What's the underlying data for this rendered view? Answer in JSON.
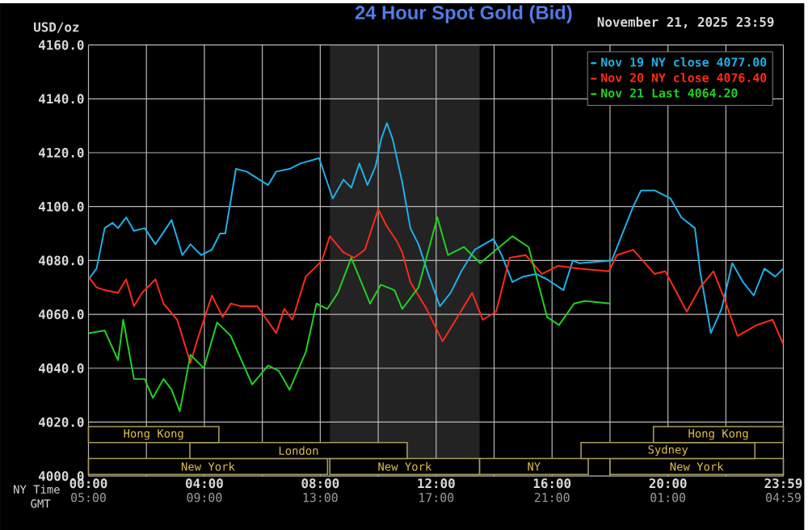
{
  "chart_data": [
    {
      "type": "line",
      "title": "24 Hour Spot Gold (Bid)",
      "subtitle": "November 21, 2025 23:59",
      "ylabel": "USD/oz",
      "xlabel": "NY Time",
      "x2label": "GMT",
      "xlim": [
        0,
        23.983
      ],
      "ylim": [
        4000,
        4160
      ],
      "xticks": [
        {
          "value": 0,
          "label": "00:00"
        },
        {
          "value": 2,
          "label": null
        },
        {
          "value": 4,
          "label": "04:00"
        },
        {
          "value": 6,
          "label": null
        },
        {
          "value": 8,
          "label": "08:00"
        },
        {
          "value": 10,
          "label": null
        },
        {
          "value": 12,
          "label": "12:00"
        },
        {
          "value": 14,
          "label": null
        },
        {
          "value": 16,
          "label": "16:00"
        },
        {
          "value": 18,
          "label": null
        },
        {
          "value": 20,
          "label": "20:00"
        },
        {
          "value": 22,
          "label": null
        },
        {
          "value": 23.983,
          "label": "23:59"
        }
      ],
      "x2lim": [
        "2025-11-21T05:00",
        "2025-11-22T04:59"
      ],
      "x2ticks": [
        {
          "value": "2025-11-21T05:00",
          "label": "05:00"
        },
        {
          "value": "2025-11-21T09:00",
          "label": "09:00"
        },
        {
          "value": "2025-11-21T13:00",
          "label": "13:00"
        },
        {
          "value": "2025-11-21T17:00",
          "label": "17:00"
        },
        {
          "value": "2025-11-21T21:00",
          "label": "21:00"
        },
        {
          "value": "2025-11-22T01:00",
          "label": "01:00"
        },
        {
          "value": "2025-11-22T04:59",
          "label": "04:59"
        }
      ],
      "yticks": [
        {
          "value": 4000,
          "label": "4000.0"
        },
        {
          "value": 4020,
          "label": "4020.0"
        },
        {
          "value": 4040,
          "label": "4040.0"
        },
        {
          "value": 4060,
          "label": "4060.0"
        },
        {
          "value": 4080,
          "label": "4080.0"
        },
        {
          "value": 4100,
          "label": "4100.0"
        },
        {
          "value": 4120,
          "label": "4120.0"
        },
        {
          "value": 4140,
          "label": "4140.0"
        },
        {
          "value": 4160,
          "label": "4160.0"
        }
      ],
      "grid": true,
      "legend": "top right",
      "line_style": "solid",
      "bands": [
        {
          "axis": "x",
          "from": 8.33,
          "to": 13.5,
          "color": "#232323"
        }
      ],
      "series": [
        {
          "name": "Nov 19 NY close 4077.00",
          "color": "#1fb0e8",
          "x": [
            0,
            0.28,
            0.56,
            0.83,
            1.02,
            1.3,
            1.57,
            1.94,
            2.31,
            2.87,
            3.24,
            3.52,
            3.89,
            4.26,
            4.54,
            4.72,
            5.09,
            5.46,
            6.2,
            6.48,
            6.94,
            7.31,
            7.96,
            8.43,
            8.8,
            9.07,
            9.35,
            9.63,
            9.91,
            10.1,
            10.3,
            10.5,
            10.83,
            11.11,
            11.39,
            11.76,
            12.13,
            12.5,
            12.87,
            13.33,
            13.98,
            14.26,
            14.63,
            15.0,
            15.46,
            15.83,
            16.39,
            16.72,
            16.94,
            null,
            18.06,
            18.43,
            18.8,
            19.07,
            19.54,
            20.09,
            20.46,
            20.93,
            21.11,
            21.48,
            21.85,
            22.22,
            22.59,
            22.96,
            23.33,
            23.7,
            23.98
          ],
          "values": [
            4073,
            4077,
            4092,
            4094,
            4092,
            4096,
            4091,
            4092,
            4086,
            4095,
            4082,
            4086,
            4082,
            4084,
            4090,
            4090,
            4114,
            4113,
            4108,
            4113,
            4114,
            4116,
            4118,
            4103,
            4110,
            4107,
            4116,
            4108,
            4115,
            4125,
            4131,
            4125,
            4109,
            4092,
            4086,
            4074,
            4063,
            4068,
            4076,
            4084,
            4088,
            4082,
            4072,
            4074,
            4075,
            4073,
            4069,
            4080,
            4079,
            null,
            4080,
            4090,
            4100,
            4106,
            4106,
            4103,
            4096,
            4092,
            4076,
            4053,
            4062,
            4079,
            4072,
            4067,
            4077,
            4074,
            4077
          ]
        },
        {
          "name": "Nov 20 NY close 4076.40",
          "color": "#ff2a1a",
          "x": [
            0,
            0.28,
            0.56,
            1.02,
            1.3,
            1.57,
            1.85,
            2.31,
            2.59,
            3.06,
            3.52,
            3.8,
            4.26,
            4.63,
            4.91,
            5.28,
            5.83,
            6.48,
            6.76,
            7.04,
            7.5,
            8.06,
            8.33,
            8.8,
            9.17,
            9.54,
            10.0,
            10.28,
            10.65,
            10.83,
            11.11,
            11.67,
            12.22,
            12.68,
            13.24,
            13.61,
            14.07,
            14.54,
            15.09,
            15.65,
            16.2,
            16.94,
            17.96,
            18.24,
            18.8,
            19.54,
            19.91,
            20.65,
            21.11,
            21.57,
            21.94,
            22.4,
            23.06,
            23.61,
            23.98
          ],
          "values": [
            4074,
            4070,
            4069,
            4068,
            4073,
            4063,
            4068,
            4073,
            4064,
            4058,
            4042,
            4052,
            4067,
            4059,
            4064,
            4063,
            4063,
            4053,
            4062,
            4058,
            4074,
            4080,
            4089,
            4083,
            4081,
            4084,
            4099,
            4093,
            4087,
            4083,
            4072,
            4062,
            4050,
            4058,
            4068,
            4058,
            4061,
            4081,
            4082,
            4075,
            4078,
            4077,
            4076,
            4082,
            4084,
            4075,
            4076,
            4061,
            4070,
            4076,
            4066,
            4052,
            4056,
            4058,
            4049
          ]
        },
        {
          "name": "Nov 21 Last 4064.20",
          "color": "#22d022",
          "x": [
            0,
            0.56,
            1.02,
            1.2,
            1.57,
            1.94,
            2.22,
            2.59,
            2.87,
            3.15,
            3.52,
            3.98,
            4.44,
            4.91,
            5.65,
            6.2,
            6.57,
            6.94,
            7.5,
            7.87,
            8.24,
            8.61,
            9.07,
            9.72,
            10.09,
            10.56,
            10.83,
            11.39,
            12.04,
            12.41,
            12.96,
            13.52,
            14.07,
            14.63,
            15.19,
            15.56,
            15.83,
            16.24,
            16.76,
            17.13,
            18.02
          ],
          "values": [
            4053,
            4054,
            4043,
            4058,
            4036,
            4036,
            4029,
            4036,
            4032,
            4024,
            4045,
            4040,
            4057,
            4052,
            4034,
            4041,
            4039,
            4032,
            4046,
            4064,
            4062,
            4068,
            4081,
            4064,
            4071,
            4069,
            4062,
            4070,
            4096,
            4082,
            4085,
            4079,
            4084,
            4089,
            4085,
            4070,
            4059,
            4056,
            4064,
            4065,
            4064
          ]
        }
      ]
    },
    {
      "type": "other",
      "annotations": [
        "New York",
        "New York",
        "NY",
        "New York",
        "London",
        "Sydney",
        "Hong Kong",
        "Hong Kong"
      ]
    }
  ]
}
